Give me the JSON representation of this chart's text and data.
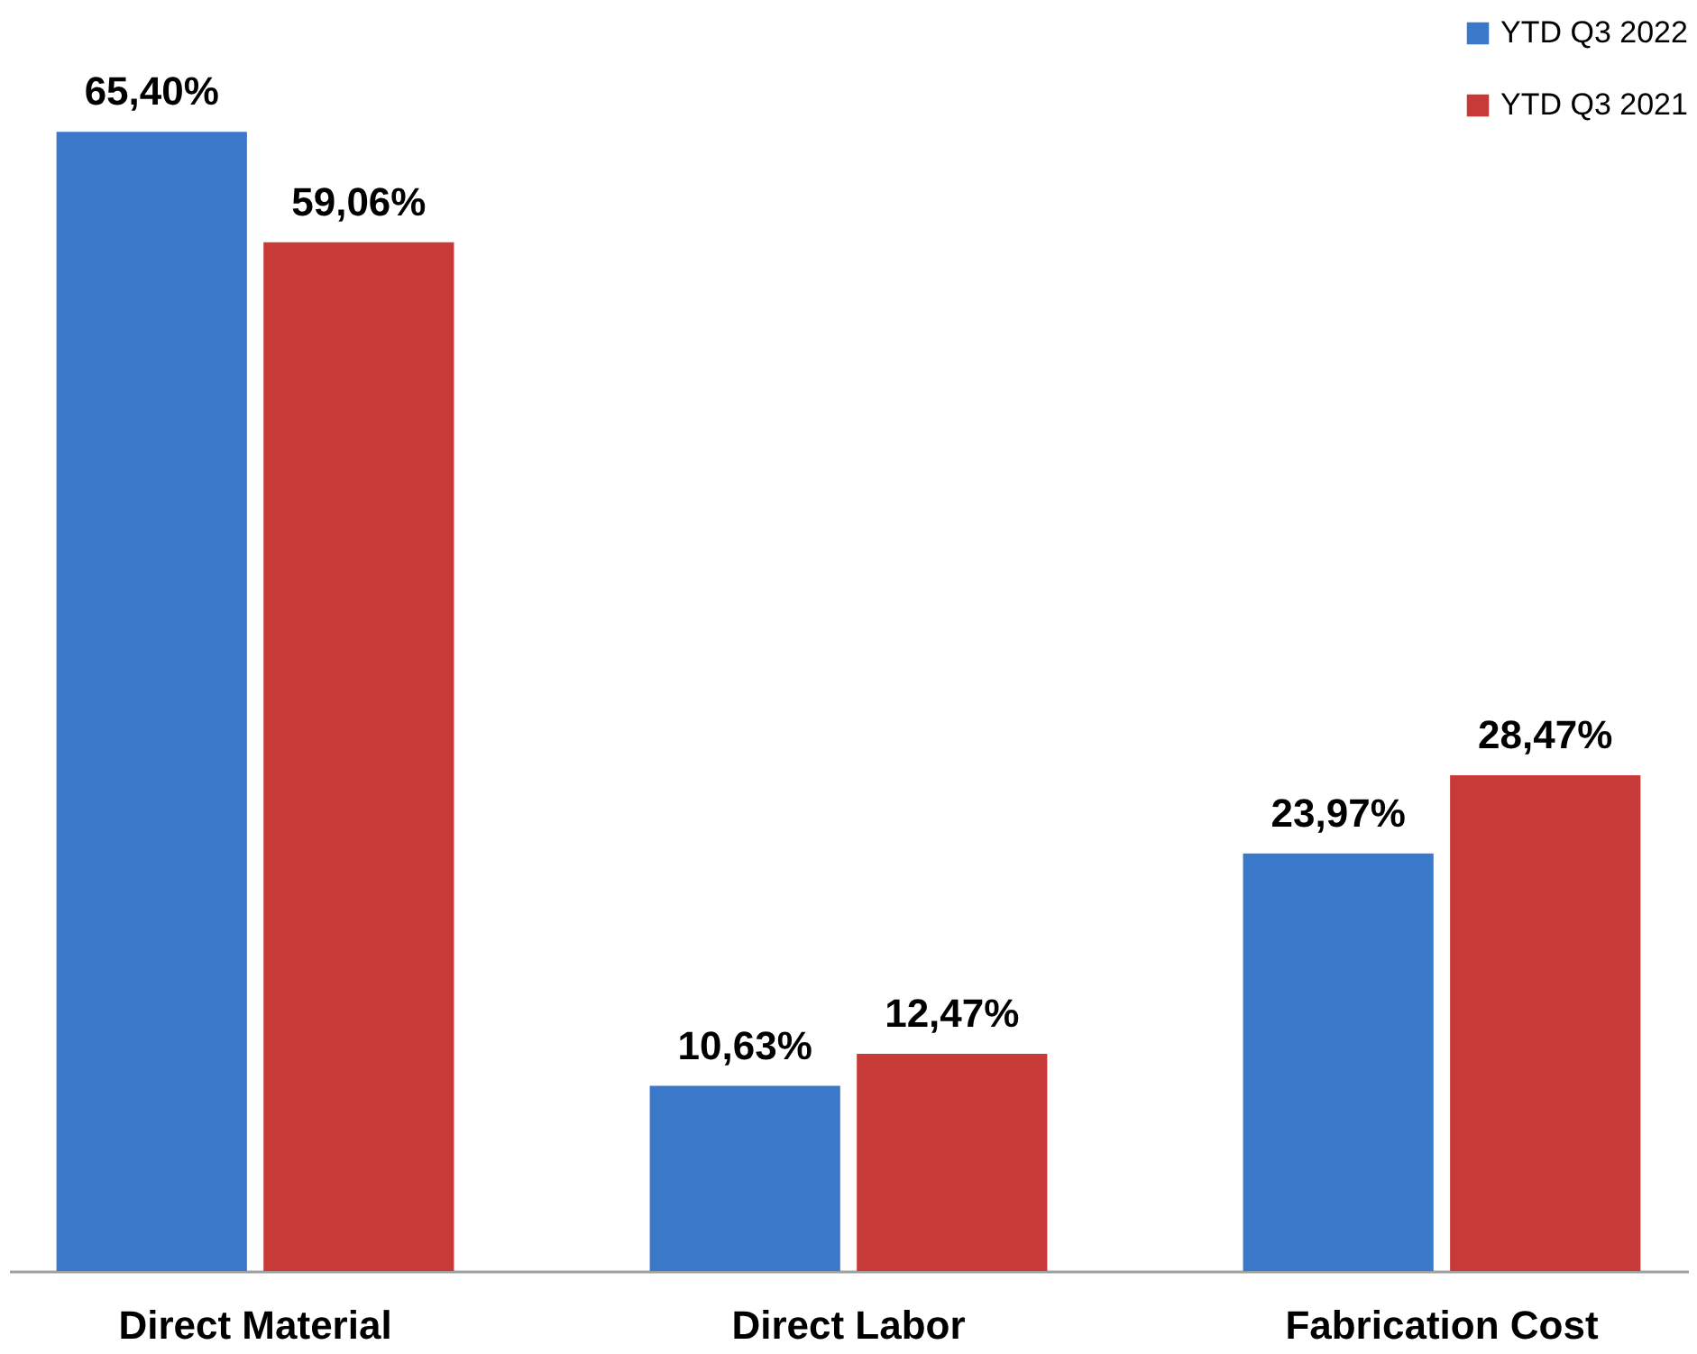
{
  "chart_data": {
    "type": "bar",
    "categories": [
      "Direct Material",
      "Direct Labor",
      "Fabrication Cost"
    ],
    "series": [
      {
        "name": "YTD Q3 2022",
        "color": "#3a78c9",
        "values": [
          65.4,
          10.63,
          23.97
        ],
        "value_labels": [
          "65,40%",
          "10,63%",
          "23,97%"
        ]
      },
      {
        "name": "YTD Q3 2021",
        "color": "#c83a37",
        "values": [
          59.06,
          12.47,
          28.47
        ],
        "value_labels": [
          "59,06%",
          "12,47%",
          "28,47%"
        ]
      }
    ],
    "legend": "top right",
    "grid": false
  }
}
